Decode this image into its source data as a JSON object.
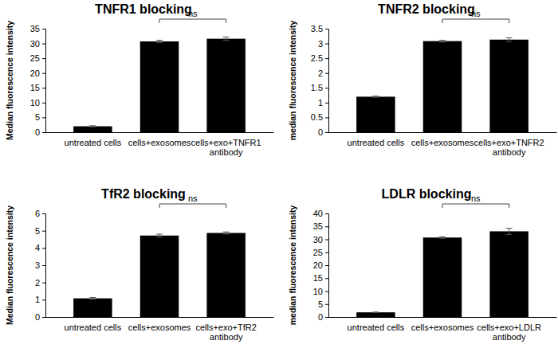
{
  "chart_data": [
    {
      "type": "bar",
      "title": "TNFR1 blocking",
      "ylabel": "Median fluorescence intensity",
      "categories": [
        "untreated cells",
        "cells+exosomes",
        "cells+exo+TNFR1 antibody"
      ],
      "values": [
        2.0,
        30.7,
        31.6
      ],
      "errors": [
        0.2,
        0.4,
        0.6
      ],
      "color": "#000000",
      "ylim": [
        0,
        35
      ],
      "yticks": [
        0,
        5,
        10,
        15,
        20,
        25,
        30,
        35
      ],
      "grid": false,
      "annotations": [
        {
          "text": "ns",
          "categories": [
            1,
            2
          ]
        }
      ]
    },
    {
      "type": "bar",
      "title": "TNFR2 blocking",
      "ylabel": "median fluorescence intensity",
      "categories": [
        "untreated cells",
        "cells+exosomes",
        "cells+exo+TNFR2 antibody"
      ],
      "values": [
        1.2,
        3.08,
        3.13
      ],
      "errors": [
        0.02,
        0.03,
        0.06
      ],
      "color": "#000000",
      "ylim": [
        0,
        3.5
      ],
      "yticks": [
        0,
        0.5,
        1,
        1.5,
        2,
        2.5,
        3,
        3.5
      ],
      "grid": false,
      "annotations": [
        {
          "text": "ns",
          "categories": [
            1,
            2
          ]
        }
      ]
    },
    {
      "type": "bar",
      "title": "TfR2 blocking",
      "ylabel": "Median fluorescence intensity",
      "categories": [
        "untreated cells",
        "cells+exosomes",
        "cells+exo+TfR2 antibody"
      ],
      "values": [
        1.08,
        4.72,
        4.87
      ],
      "errors": [
        0.05,
        0.08,
        0.06
      ],
      "color": "#000000",
      "ylim": [
        0,
        6
      ],
      "yticks": [
        0,
        1,
        2,
        3,
        4,
        5,
        6
      ],
      "grid": false,
      "annotations": [
        {
          "text": "ns",
          "categories": [
            1,
            2
          ]
        }
      ]
    },
    {
      "type": "bar",
      "title": "LDLR blocking",
      "ylabel": "median fluorescence intensity",
      "categories": [
        "untreated cells",
        "cells+exosomes",
        "cells+exo+LDLR antibody"
      ],
      "values": [
        1.8,
        30.7,
        33.1
      ],
      "errors": [
        0.1,
        0.3,
        1.2
      ],
      "color": "#000000",
      "ylim": [
        0,
        40
      ],
      "yticks": [
        0,
        5,
        10,
        15,
        20,
        25,
        30,
        35,
        40
      ],
      "grid": false,
      "annotations": [
        {
          "text": "ns",
          "categories": [
            1,
            2
          ]
        }
      ]
    }
  ]
}
